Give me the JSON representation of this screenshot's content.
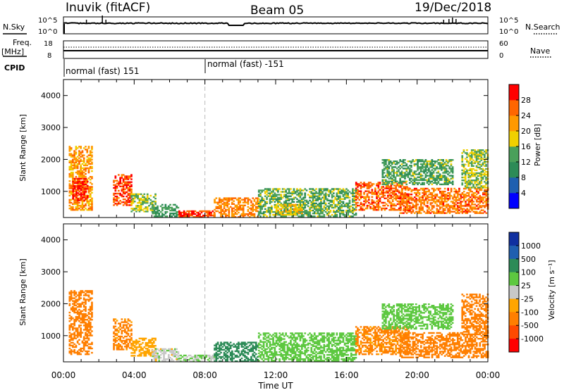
{
  "header": {
    "station": "Inuvik (fitACF)",
    "beam": "Beam 05",
    "date": "19/Dec/2018"
  },
  "top_panels": {
    "nsky_label": "N.Sky",
    "nsky_ticks": [
      "10^5",
      "10^0"
    ],
    "nsearch_label": "N.Search",
    "freq_label": "Freq.",
    "freq_unit": "[MHz]",
    "freq_ticks": [
      "18",
      "8"
    ],
    "nave_label": "Nave",
    "nave_ticks": [
      "60",
      "0"
    ],
    "cpid_label": "CPID",
    "cpid_segments": [
      {
        "label": "normal (fast) 151",
        "start_hour": 0
      },
      {
        "label": "normal (fast) -151",
        "start_hour": 8
      }
    ]
  },
  "colors": {
    "power": [
      "#0000ff",
      "#1f5fb0",
      "#2c8b57",
      "#4aa05a",
      "#f0d000",
      "#ff9900",
      "#ff6600",
      "#ff0000"
    ],
    "velocity": [
      "#ff0000",
      "#ff4a00",
      "#ff7f00",
      "#ffa500",
      "#c8c8c8",
      "#5dc840",
      "#2c8b57",
      "#1f5fb0",
      "#1030a0"
    ]
  },
  "chart_data": [
    {
      "type": "heatmap",
      "name": "power",
      "ylabel": "Slant Range [km]",
      "xlim": [
        0,
        24
      ],
      "ylim": [
        180,
        4500
      ],
      "yticks": [
        1000,
        2000,
        3000,
        4000
      ],
      "xticks": [
        "00:00",
        "04:00",
        "08:00",
        "12:00",
        "16:00",
        "20:00",
        "00:00"
      ],
      "colorbar": {
        "label": "Power [dB]",
        "ticks": [
          "4",
          "8",
          "12",
          "16",
          "20",
          "24",
          "28"
        ],
        "range": [
          0,
          32
        ]
      },
      "regions": [
        {
          "t": [
            0.3,
            1.6
          ],
          "r": [
            400,
            2400
          ],
          "value": 22
        },
        {
          "t": [
            0.5,
            1.4
          ],
          "r": [
            700,
            1400
          ],
          "value": 29
        },
        {
          "t": [
            2.8,
            3.8
          ],
          "r": [
            550,
            1500
          ],
          "value": 27
        },
        {
          "t": [
            3.8,
            5.2
          ],
          "r": [
            350,
            900
          ],
          "value": 16
        },
        {
          "t": [
            5.0,
            6.5
          ],
          "r": [
            200,
            600
          ],
          "value": 12
        },
        {
          "t": [
            6.5,
            8.5
          ],
          "r": [
            180,
            400
          ],
          "value": 28
        },
        {
          "t": [
            8.5,
            11.0
          ],
          "r": [
            180,
            800
          ],
          "value": 24
        },
        {
          "t": [
            11.0,
            16.5
          ],
          "r": [
            200,
            1100
          ],
          "value": 14
        },
        {
          "t": [
            12.0,
            13.5
          ],
          "r": [
            250,
            600
          ],
          "value": 18
        },
        {
          "t": [
            16.5,
            19.5
          ],
          "r": [
            400,
            1300
          ],
          "value": 26
        },
        {
          "t": [
            18.0,
            22.0
          ],
          "r": [
            1200,
            2000
          ],
          "value": 13
        },
        {
          "t": [
            19.0,
            24.0
          ],
          "r": [
            300,
            1100
          ],
          "value": 25
        },
        {
          "t": [
            22.5,
            24.0
          ],
          "r": [
            1100,
            2300
          ],
          "value": 16
        }
      ]
    },
    {
      "type": "heatmap",
      "name": "velocity",
      "ylabel": "Slant Range [km]",
      "xlabel": "Time UT",
      "xlim": [
        0,
        24
      ],
      "ylim": [
        180,
        4500
      ],
      "yticks": [
        1000,
        2000,
        3000,
        4000
      ],
      "xticks": [
        "00:00",
        "04:00",
        "08:00",
        "12:00",
        "16:00",
        "20:00",
        "00:00"
      ],
      "colorbar": {
        "label": "Velocity [m s⁻¹]",
        "ticks": [
          "1000",
          "500",
          "100",
          "25",
          "-25",
          "-100",
          "-500",
          "-1000"
        ]
      },
      "regions": [
        {
          "t": [
            0.3,
            1.6
          ],
          "r": [
            400,
            2400
          ],
          "value": -150
        },
        {
          "t": [
            2.8,
            3.8
          ],
          "r": [
            550,
            1500
          ],
          "value": -120
        },
        {
          "t": [
            3.8,
            5.2
          ],
          "r": [
            350,
            900
          ],
          "value": -60
        },
        {
          "t": [
            5.0,
            6.5
          ],
          "r": [
            200,
            600
          ],
          "value": 0
        },
        {
          "t": [
            6.5,
            8.5
          ],
          "r": [
            180,
            400
          ],
          "value": 30
        },
        {
          "t": [
            8.5,
            11.0
          ],
          "r": [
            180,
            800
          ],
          "value": 150
        },
        {
          "t": [
            11.0,
            16.5
          ],
          "r": [
            200,
            1100
          ],
          "value": 60
        },
        {
          "t": [
            16.5,
            19.5
          ],
          "r": [
            400,
            1300
          ],
          "value": -120
        },
        {
          "t": [
            18.0,
            22.0
          ],
          "r": [
            1200,
            2000
          ],
          "value": 60
        },
        {
          "t": [
            19.0,
            24.0
          ],
          "r": [
            300,
            1100
          ],
          "value": -200
        },
        {
          "t": [
            22.5,
            24.0
          ],
          "r": [
            1100,
            2300
          ],
          "value": -150
        }
      ]
    }
  ]
}
